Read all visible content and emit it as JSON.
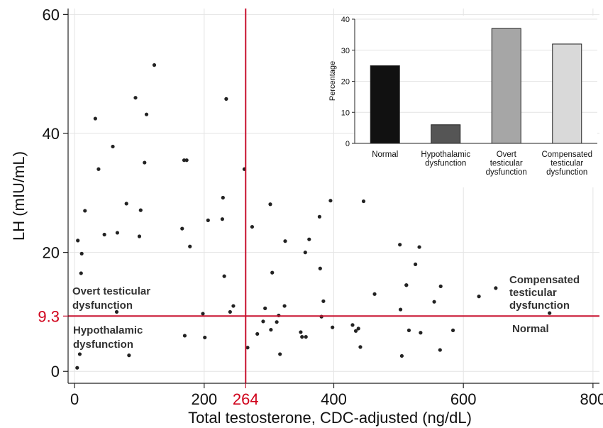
{
  "chart_data": [
    {
      "type": "scatter",
      "xlabel": "Total testosterone, CDC-adjusted (ng/dL)",
      "ylabel": "LH (mIU/mL)",
      "xlim": [
        -10,
        810
      ],
      "ylim": [
        -2,
        61
      ],
      "xticks": [
        "0",
        "200",
        "264",
        "400",
        "600",
        "800"
      ],
      "yticks": [
        "0",
        "9.3",
        "20",
        "40",
        "60"
      ],
      "grid": true,
      "reference_lines": {
        "x": {
          "value": 264,
          "label": "264",
          "color": "#c8102e"
        },
        "y": {
          "value": 9.3,
          "label": "9.3",
          "color": "#c8102e"
        }
      },
      "region_labels": {
        "overt": [
          "Overt testicular",
          "dysfunction"
        ],
        "hypothalamic": [
          "Hypothalamic",
          "dysfunction"
        ],
        "compensated": [
          "Compensated",
          "testicular",
          "dysfunction"
        ],
        "normal": [
          "Normal"
        ]
      },
      "points": [
        [
          4,
          0.6
        ],
        [
          5,
          22
        ],
        [
          8,
          2.9
        ],
        [
          10,
          16.5
        ],
        [
          11,
          19.8
        ],
        [
          16,
          27
        ],
        [
          32,
          42.5
        ],
        [
          37,
          34
        ],
        [
          46,
          23
        ],
        [
          59,
          37.8
        ],
        [
          65,
          10
        ],
        [
          66,
          23.3
        ],
        [
          80,
          28.2
        ],
        [
          84,
          2.7
        ],
        [
          94,
          46
        ],
        [
          100,
          22.7
        ],
        [
          102,
          27.1
        ],
        [
          108,
          35.1
        ],
        [
          111,
          43.2
        ],
        [
          123,
          51.5
        ],
        [
          166,
          24
        ],
        [
          169,
          35.5
        ],
        [
          170,
          6
        ],
        [
          173,
          35.5
        ],
        [
          178,
          21
        ],
        [
          198,
          9.7
        ],
        [
          201,
          5.7
        ],
        [
          206,
          25.4
        ],
        [
          228,
          25.6
        ],
        [
          229,
          29.2
        ],
        [
          231,
          16
        ],
        [
          234,
          45.8
        ],
        [
          240,
          10
        ],
        [
          245,
          11
        ],
        [
          262,
          34
        ],
        [
          267,
          4
        ],
        [
          274,
          24.3
        ],
        [
          282,
          6.3
        ],
        [
          291,
          8.4
        ],
        [
          294,
          10.6
        ],
        [
          302,
          28.1
        ],
        [
          303,
          7
        ],
        [
          305,
          16.6
        ],
        [
          312,
          8.3
        ],
        [
          315,
          9.4
        ],
        [
          317,
          2.9
        ],
        [
          324,
          11
        ],
        [
          325,
          21.9
        ],
        [
          349,
          6.6
        ],
        [
          351,
          5.8
        ],
        [
          356,
          20
        ],
        [
          357,
          5.8
        ],
        [
          362,
          22.2
        ],
        [
          378,
          26
        ],
        [
          379,
          17.3
        ],
        [
          381,
          9.2
        ],
        [
          384,
          11.8
        ],
        [
          398,
          7.4
        ],
        [
          395,
          28.7
        ],
        [
          429,
          7.8
        ],
        [
          434,
          6.8
        ],
        [
          438,
          7.2
        ],
        [
          441,
          4.1
        ],
        [
          446,
          28.6
        ],
        [
          463,
          13
        ],
        [
          503,
          10.4
        ],
        [
          509,
          33.4
        ],
        [
          505,
          2.6
        ],
        [
          512,
          14.5
        ],
        [
          516,
          6.9
        ],
        [
          526,
          18
        ],
        [
          532,
          20.9
        ],
        [
          534,
          6.5
        ],
        [
          555,
          11.7
        ],
        [
          564,
          3.6
        ],
        [
          565,
          14.3
        ],
        [
          584,
          6.9
        ],
        [
          624,
          12.6
        ],
        [
          650,
          14
        ],
        [
          733,
          9.8
        ],
        [
          502,
          21.3
        ],
        [
          512,
          14.5
        ]
      ]
    },
    {
      "type": "bar",
      "ylabel": "Percentage",
      "ylim": [
        0,
        40
      ],
      "yticks": [
        "0",
        "10",
        "20",
        "30",
        "40"
      ],
      "grid": true,
      "categories": [
        [
          "Normal"
        ],
        [
          "Hypothalamic",
          "dysfunction"
        ],
        [
          "Overt",
          "testicular",
          "dysfunction"
        ],
        [
          "Compensated",
          "testicular",
          "dysfunction"
        ]
      ],
      "values": [
        25,
        6,
        37,
        32
      ],
      "colors": [
        "#111111",
        "#555555",
        "#a6a6a6",
        "#d9d9d9"
      ]
    }
  ]
}
